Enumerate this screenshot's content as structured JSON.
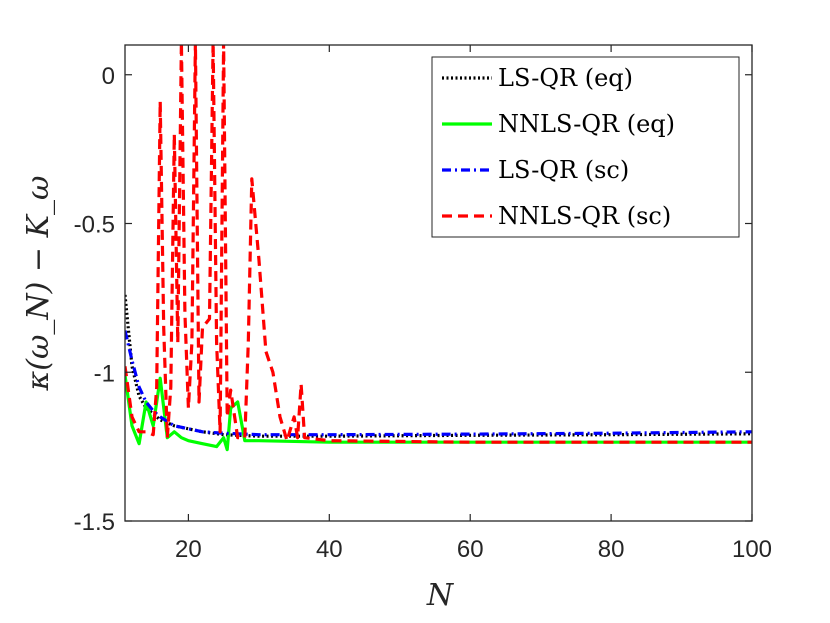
{
  "chart_data": {
    "type": "line",
    "title": "",
    "xlabel": "N",
    "ylabel": "κ(ω_N) − K_ω",
    "xlim": [
      11,
      100
    ],
    "ylim": [
      -1.5,
      0.1
    ],
    "xticks": [
      20,
      40,
      60,
      80,
      100
    ],
    "xtick_labels": [
      "20",
      "40",
      "60",
      "80",
      "100"
    ],
    "yticks": [
      0,
      -0.5,
      -1,
      -1.5
    ],
    "ytick_labels": [
      "0",
      "-0.5",
      "-1",
      "-1.5"
    ],
    "legend_position": "top-right",
    "series": [
      {
        "name": "LS-QR (eq)",
        "color": "#000000",
        "dash": "dotted",
        "points": [
          [
            11,
            -0.74
          ],
          [
            12,
            -0.98
          ],
          [
            13,
            -1.08
          ],
          [
            14,
            -1.12
          ],
          [
            15,
            -1.14
          ],
          [
            16,
            -1.16
          ],
          [
            18,
            -1.18
          ],
          [
            20,
            -1.19
          ],
          [
            22,
            -1.2
          ],
          [
            25,
            -1.21
          ],
          [
            30,
            -1.215
          ],
          [
            40,
            -1.215
          ],
          [
            60,
            -1.212
          ],
          [
            80,
            -1.21
          ],
          [
            100,
            -1.207
          ]
        ]
      },
      {
        "name": "NNLS-QR (eq)",
        "color": "#00ff00",
        "dash": "solid",
        "points": [
          [
            11,
            -1.01
          ],
          [
            12,
            -1.18
          ],
          [
            13,
            -1.24
          ],
          [
            14,
            -1.1
          ],
          [
            15,
            -1.18
          ],
          [
            16,
            -1.02
          ],
          [
            17,
            -1.22
          ],
          [
            18,
            -1.2
          ],
          [
            19,
            -1.22
          ],
          [
            20,
            -1.23
          ],
          [
            22,
            -1.24
          ],
          [
            24,
            -1.25
          ],
          [
            25,
            -1.22
          ],
          [
            25.5,
            -1.26
          ],
          [
            26,
            -1.12
          ],
          [
            27,
            -1.1
          ],
          [
            28,
            -1.23
          ],
          [
            30,
            -1.23
          ],
          [
            40,
            -1.235
          ],
          [
            60,
            -1.235
          ],
          [
            80,
            -1.235
          ],
          [
            100,
            -1.235
          ]
        ]
      },
      {
        "name": "LS-QR (sc)",
        "color": "#0000ff",
        "dash": "dashdot",
        "points": [
          [
            11,
            -0.86
          ],
          [
            12,
            -0.96
          ],
          [
            13,
            -1.05
          ],
          [
            14,
            -1.1
          ],
          [
            15,
            -1.13
          ],
          [
            16,
            -1.15
          ],
          [
            18,
            -1.18
          ],
          [
            20,
            -1.19
          ],
          [
            22,
            -1.2
          ],
          [
            25,
            -1.205
          ],
          [
            30,
            -1.21
          ],
          [
            40,
            -1.21
          ],
          [
            60,
            -1.208
          ],
          [
            80,
            -1.205
          ],
          [
            100,
            -1.2
          ]
        ]
      },
      {
        "name": "NNLS-QR (sc)",
        "color": "#ff0000",
        "dash": "dashed",
        "points": [
          [
            11,
            -0.98
          ],
          [
            12,
            -1.15
          ],
          [
            13,
            -1.2
          ],
          [
            14,
            -1.2
          ],
          [
            15,
            -1.21
          ],
          [
            15.5,
            -1.05
          ],
          [
            16,
            -0.09
          ],
          [
            16.5,
            -0.85
          ],
          [
            17,
            -1.22
          ],
          [
            17.5,
            -1.05
          ],
          [
            18,
            -0.2
          ],
          [
            18.5,
            -0.9
          ],
          [
            19,
            0.11
          ],
          [
            19.5,
            -0.8
          ],
          [
            20,
            -1.12
          ],
          [
            20.5,
            -0.9
          ],
          [
            21,
            0.11
          ],
          [
            21.5,
            -1.1
          ],
          [
            22,
            -0.85
          ],
          [
            23,
            -0.82
          ],
          [
            23.5,
            0.11
          ],
          [
            24,
            -0.9
          ],
          [
            24.5,
            -1.2
          ],
          [
            25,
            0.11
          ],
          [
            25.5,
            -1.15
          ],
          [
            26,
            -1.06
          ],
          [
            27,
            -1.22
          ],
          [
            28,
            -1.22
          ],
          [
            28.5,
            -0.9
          ],
          [
            29,
            -0.35
          ],
          [
            30,
            -0.62
          ],
          [
            31,
            -0.93
          ],
          [
            32,
            -1.0
          ],
          [
            33,
            -1.15
          ],
          [
            34,
            -1.23
          ],
          [
            35,
            -1.15
          ],
          [
            35.5,
            -1.22
          ],
          [
            36,
            -1.04
          ],
          [
            36.5,
            -1.22
          ],
          [
            40,
            -1.23
          ],
          [
            60,
            -1.235
          ],
          [
            80,
            -1.235
          ],
          [
            100,
            -1.235
          ]
        ]
      }
    ]
  }
}
